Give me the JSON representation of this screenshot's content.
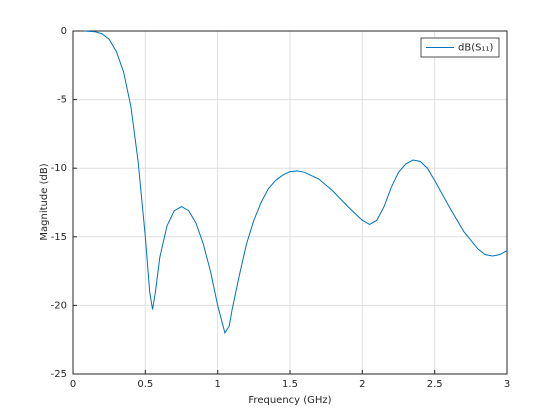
{
  "chart_data": {
    "type": "line",
    "xlabel": "Frequency (GHz)",
    "ylabel": "Magnitude (dB)",
    "x": [
      0.08,
      0.1,
      0.15,
      0.2,
      0.25,
      0.3,
      0.35,
      0.4,
      0.45,
      0.5,
      0.53,
      0.55,
      0.57,
      0.6,
      0.65,
      0.7,
      0.75,
      0.8,
      0.85,
      0.9,
      0.95,
      1.0,
      1.05,
      1.08,
      1.1,
      1.15,
      1.2,
      1.25,
      1.3,
      1.35,
      1.4,
      1.45,
      1.5,
      1.55,
      1.6,
      1.7,
      1.8,
      1.9,
      2.0,
      2.05,
      2.1,
      2.15,
      2.2,
      2.25,
      2.3,
      2.35,
      2.4,
      2.45,
      2.5,
      2.6,
      2.7,
      2.8,
      2.85,
      2.9,
      2.95,
      3.0
    ],
    "series": [
      {
        "name": "dB(S₁₁)",
        "color": "#0072bd",
        "values": [
          0,
          -0.02,
          -0.05,
          -0.2,
          -0.6,
          -1.5,
          -3,
          -5.5,
          -9.5,
          -15,
          -19,
          -20.3,
          -19,
          -16.5,
          -14.2,
          -13.1,
          -12.8,
          -13.1,
          -14,
          -15.5,
          -17.5,
          -20,
          -22,
          -21.5,
          -20.3,
          -17.8,
          -15.5,
          -13.8,
          -12.5,
          -11.5,
          -10.9,
          -10.5,
          -10.25,
          -10.2,
          -10.3,
          -10.8,
          -11.7,
          -12.8,
          -13.8,
          -14.1,
          -13.8,
          -12.8,
          -11.4,
          -10.3,
          -9.7,
          -9.4,
          -9.5,
          -10,
          -10.9,
          -12.8,
          -14.6,
          -15.9,
          -16.3,
          -16.4,
          -16.3,
          -16.0
        ]
      }
    ],
    "xlim": [
      0,
      3
    ],
    "xticks": [
      0,
      0.5,
      1,
      1.5,
      2,
      2.5,
      3
    ],
    "ylim": [
      -25,
      0
    ],
    "yticks": [
      -25,
      -20,
      -15,
      -10,
      -5,
      0
    ],
    "grid": true,
    "legend": "northeast"
  }
}
